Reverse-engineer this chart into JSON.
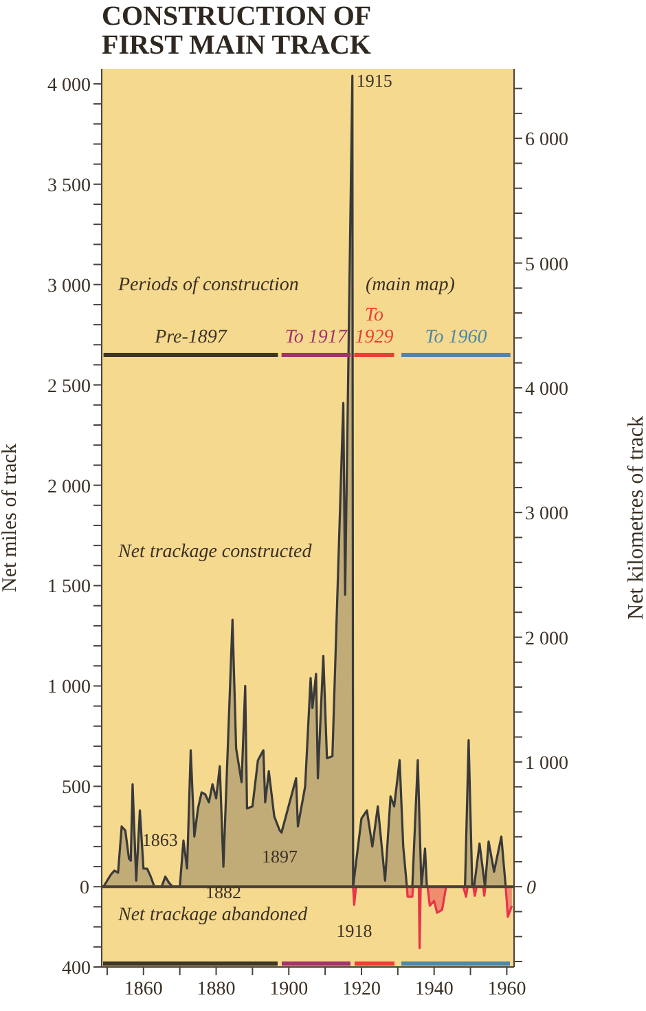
{
  "chart_data": {
    "type": "area",
    "title": "CONSTRUCTION OF FIRST MAIN TRACK",
    "ylabel": "Net miles of track",
    "y2label": "Net kilometres of track",
    "xlim": [
      1848.5,
      1962
    ],
    "xticks": [
      {
        "value": 1850,
        "label": null
      },
      1860,
      {
        "value": 1870,
        "label": null
      },
      1880,
      {
        "value": 1890,
        "label": null
      },
      1900,
      {
        "value": 1910,
        "label": null
      },
      1920,
      {
        "value": 1930,
        "label": null
      },
      1940,
      {
        "value": 1950,
        "label": null
      },
      1960
    ],
    "ylim": [
      -400,
      4075
    ],
    "yticks": [
      {
        "value": -400,
        "label": "400"
      },
      {
        "value": -300,
        "label": null
      },
      {
        "value": -200,
        "label": null
      },
      {
        "value": -100,
        "label": null
      },
      0,
      {
        "value": 100,
        "label": null
      },
      {
        "value": 200,
        "label": null
      },
      {
        "value": 300,
        "label": null
      },
      {
        "value": 400,
        "label": null
      },
      500,
      {
        "value": 600,
        "label": null
      },
      {
        "value": 700,
        "label": null
      },
      {
        "value": 800,
        "label": null
      },
      {
        "value": 900,
        "label": null
      },
      {
        "value": 1000,
        "label": "1 000"
      },
      {
        "value": 1100,
        "label": null
      },
      {
        "value": 1200,
        "label": null
      },
      {
        "value": 1300,
        "label": null
      },
      {
        "value": 1400,
        "label": null
      },
      {
        "value": 1500,
        "label": "1 500"
      },
      {
        "value": 1600,
        "label": null
      },
      {
        "value": 1700,
        "label": null
      },
      {
        "value": 1800,
        "label": null
      },
      {
        "value": 1900,
        "label": null
      },
      {
        "value": 2000,
        "label": "2 000"
      },
      {
        "value": 2100,
        "label": null
      },
      {
        "value": 2200,
        "label": null
      },
      {
        "value": 2300,
        "label": null
      },
      {
        "value": 2400,
        "label": null
      },
      {
        "value": 2500,
        "label": "2 500"
      },
      {
        "value": 2600,
        "label": null
      },
      {
        "value": 2700,
        "label": null
      },
      {
        "value": 2800,
        "label": null
      },
      {
        "value": 2900,
        "label": null
      },
      {
        "value": 3000,
        "label": "3 000"
      },
      {
        "value": 3100,
        "label": null
      },
      {
        "value": 3200,
        "label": null
      },
      {
        "value": 3300,
        "label": null
      },
      {
        "value": 3400,
        "label": null
      },
      {
        "value": 3500,
        "label": "3 500"
      },
      {
        "value": 3600,
        "label": null
      },
      {
        "value": 3700,
        "label": null
      },
      {
        "value": 3800,
        "label": null
      },
      {
        "value": 3900,
        "label": null
      },
      {
        "value": 4000,
        "label": "4 000"
      }
    ],
    "y2lim": [
      -644,
      6558
    ],
    "y2ticks": [
      {
        "value": -600,
        "label": null
      },
      {
        "value": -400,
        "label": null
      },
      {
        "value": -200,
        "label": null
      },
      0,
      {
        "value": 200,
        "label": null
      },
      {
        "value": 400,
        "label": null
      },
      {
        "value": 600,
        "label": null
      },
      {
        "value": 800,
        "label": null
      },
      {
        "value": 1000,
        "label": "1 000"
      },
      {
        "value": 1200,
        "label": null
      },
      {
        "value": 1400,
        "label": null
      },
      {
        "value": 1600,
        "label": null
      },
      {
        "value": 1800,
        "label": null
      },
      {
        "value": 2000,
        "label": "2 000"
      },
      {
        "value": 2200,
        "label": null
      },
      {
        "value": 2400,
        "label": null
      },
      {
        "value": 2600,
        "label": null
      },
      {
        "value": 2800,
        "label": null
      },
      {
        "value": 3000,
        "label": "3 000"
      },
      {
        "value": 3200,
        "label": null
      },
      {
        "value": 3400,
        "label": null
      },
      {
        "value": 3600,
        "label": null
      },
      {
        "value": 3800,
        "label": null
      },
      {
        "value": 4000,
        "label": "4 000"
      },
      {
        "value": 4200,
        "label": null
      },
      {
        "value": 4400,
        "label": null
      },
      {
        "value": 4600,
        "label": null
      },
      {
        "value": 4800,
        "label": null
      },
      {
        "value": 5000,
        "label": "5 000"
      },
      {
        "value": 5200,
        "label": null
      },
      {
        "value": 5400,
        "label": null
      },
      {
        "value": 5600,
        "label": null
      },
      {
        "value": 5800,
        "label": null
      },
      {
        "value": 6000,
        "label": "6 000"
      },
      {
        "value": 6200,
        "label": null
      },
      {
        "value": 6400,
        "label": null
      }
    ],
    "series": [
      {
        "type": "line",
        "name": "Pre-1897",
        "color": "#3d3526",
        "x": [
          1849,
          1897
        ],
        "values": [
          2650,
          2650
        ]
      },
      {
        "type": "line",
        "name": "To 1917",
        "color": "#a3326e",
        "x": [
          1898,
          1917
        ],
        "values": [
          2650,
          2650
        ]
      },
      {
        "type": "line",
        "name": "To 1929",
        "color": "#ea3f36",
        "x": [
          1918,
          1929
        ],
        "values": [
          2650,
          2650
        ]
      },
      {
        "type": "line",
        "name": "To 1960",
        "color": "#4d88a8",
        "x": [
          1931,
          1961
        ],
        "values": [
          2650,
          2650
        ]
      },
      {
        "color": "#3a3a3a",
        "x": [
          1849,
          1850,
          1851,
          1852,
          1853,
          1854,
          1855,
          1856,
          1856.5,
          1857,
          1858,
          1859,
          1860,
          1861,
          1862,
          1863,
          1865,
          1866,
          1867,
          1868,
          1870,
          1871,
          1872,
          1873,
          1874,
          1875,
          1876,
          1877,
          1878,
          1879,
          1880,
          1881,
          1882,
          1884.5,
          1885.5,
          1887,
          1888,
          1888.5,
          1890,
          1891.5,
          1893,
          1893.5,
          1894.5,
          1896,
          1897.5,
          1898,
          1902,
          1902.5,
          1904.5,
          1906,
          1906.5,
          1907.5,
          1908,
          1909.5,
          1910.5,
          1912,
          1915,
          1915.5,
          1917.5,
          1917.7,
          1920,
          1921.5,
          1923,
          1924.5,
          1926.5,
          1928,
          1929,
          1930.5,
          1931.5,
          1932.5,
          1934,
          1935.5,
          1936.5,
          1937.5,
          1938,
          1948.5,
          1949.5,
          1950.5,
          1951,
          1952.5,
          1954,
          1955,
          1956.5,
          1958.5,
          1959.7
        ],
        "values": [
          0,
          30,
          60,
          80,
          70,
          300,
          280,
          140,
          130,
          510,
          30,
          380,
          90,
          90,
          50,
          0,
          0,
          50,
          20,
          0,
          0,
          230,
          90,
          680,
          250,
          390,
          470,
          460,
          420,
          510,
          440,
          600,
          100,
          1330,
          690,
          520,
          1000,
          390,
          400,
          630,
          680,
          420,
          575,
          350,
          280,
          270,
          540,
          300,
          500,
          1040,
          890,
          1060,
          540,
          1150,
          640,
          650,
          2410,
          1455,
          4040,
          0,
          340,
          380,
          200,
          400,
          30,
          450,
          400,
          630,
          200,
          0,
          0,
          630,
          0,
          190,
          0,
          0,
          730,
          0,
          0,
          215,
          0,
          225,
          75,
          250,
          0
        ]
      },
      {
        "color": "#e8344a",
        "x": [
          1917.7,
          1918,
          1918.5,
          1925,
          1932.5,
          1932.7,
          1934,
          1934.2,
          1935,
          1935.8,
          1936,
          1936.3,
          1937,
          1938.2,
          1938.8,
          1940,
          1940.8,
          1942.2,
          1943.3,
          1945,
          1948,
          1948.8,
          1949.2,
          1950,
          1950.8,
          1951.2,
          1951.7,
          1953,
          1953.5,
          1953.8,
          1954.1,
          1957,
          1959.7,
          1960.3,
          1961.4
        ],
        "values": [
          0,
          -90,
          0,
          0,
          0,
          -50,
          -50,
          0,
          0,
          0,
          -306,
          0,
          0,
          0,
          -95,
          -70,
          -130,
          -115,
          0,
          0,
          0,
          -50,
          0,
          0,
          0,
          -45,
          0,
          0,
          0,
          -45,
          0,
          0,
          0,
          -150,
          -95
        ]
      }
    ],
    "ref_lines": [
      {
        "axis": "y",
        "value": 0,
        "color": "#4a4238"
      }
    ],
    "annotations": [
      "Periods of construction",
      "(main map)",
      "Net trackage constructed",
      "Net trackage abandoned",
      {
        "text": "1915",
        "x": 1917.5,
        "y": 4040
      },
      {
        "text": "1863",
        "x": 1863,
        "y": 0
      },
      {
        "text": "1882",
        "x": 1882,
        "y": 100
      },
      {
        "text": "1897",
        "x": 1897.5,
        "y": 280
      },
      {
        "text": "1918",
        "x": 1918,
        "y": -90
      }
    ],
    "legend": false,
    "grid": false,
    "marker": "none",
    "line_style": "solid"
  }
}
